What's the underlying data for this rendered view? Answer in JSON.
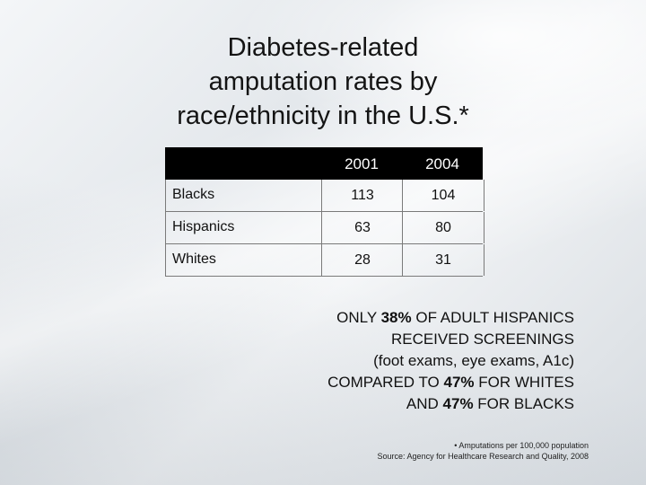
{
  "slide": {
    "title_lines": [
      "Diabetes-related",
      "amputation rates by",
      "race/ethnicity in the U.S.*"
    ],
    "table": {
      "columns": [
        "2001",
        "2004"
      ],
      "rows": [
        {
          "label": "Blacks",
          "v2001": "113",
          "v2004": "104"
        },
        {
          "label": "Hispanics",
          "v2001": "63",
          "v2004": "80"
        },
        {
          "label": "Whites",
          "v2001": "28",
          "v2004": "31"
        }
      ]
    },
    "note": {
      "l1a": "ONLY ",
      "l1b": "38%",
      "l1c": " OF ADULT HISPANICS",
      "l2": "RECEIVED SCREENINGS",
      "l3": "(foot exams, eye exams, A1c)",
      "l4a": "COMPARED TO ",
      "l4b": "47%",
      "l4c": " FOR WHITES",
      "l5a": "AND ",
      "l5b": "47%",
      "l5c": " FOR BLACKS"
    },
    "footnote": [
      "• Amputations per 100,000 population",
      "Source: Agency for Healthcare Research and Quality, 2008"
    ]
  }
}
